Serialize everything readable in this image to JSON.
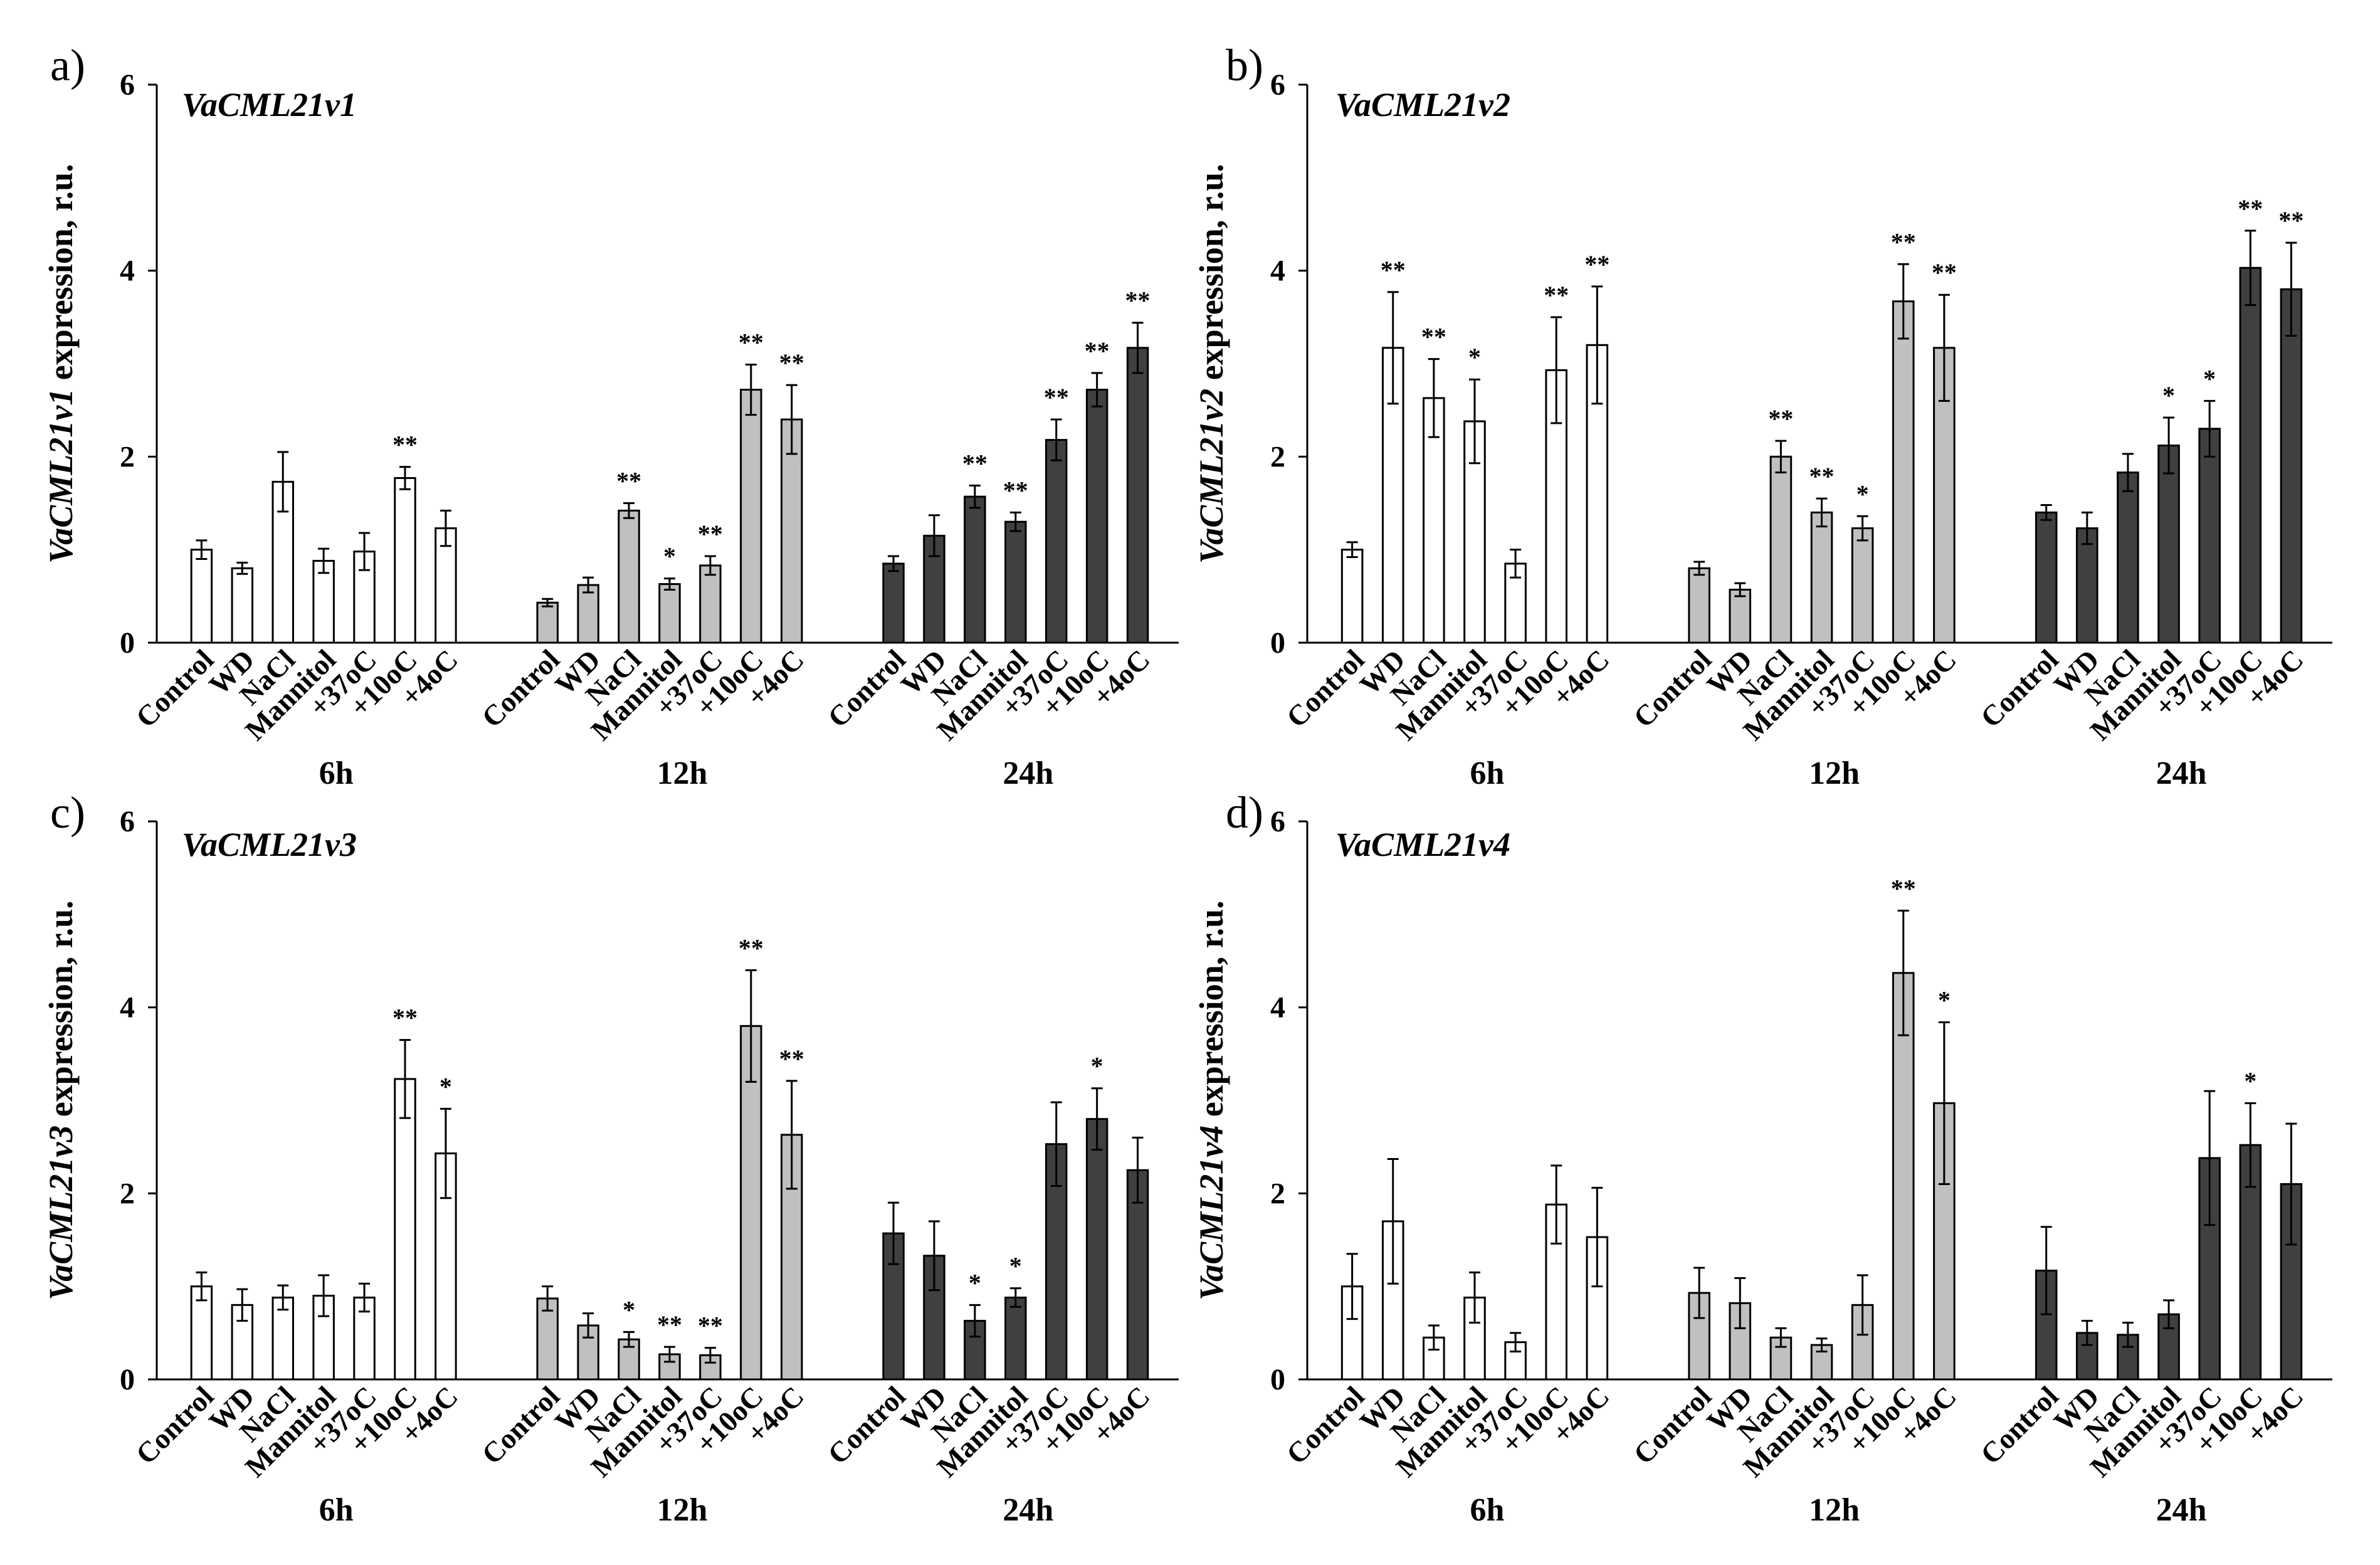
{
  "chart_data": [
    {
      "panel": "a)",
      "type": "bar",
      "title": "VaCML21v1",
      "ylabel_gene": "VaCML21v1",
      "ylabel_suffix": " expression, r.u.",
      "ylim": [
        0,
        6
      ],
      "yticks": [
        "0",
        "2",
        "4",
        "6"
      ],
      "groups": [
        {
          "name": "6h",
          "color": "#ffffff",
          "categories": [
            "Control",
            "WD",
            "NaCl",
            "Mannitol",
            "+37oC",
            "+10oC",
            "+4oC"
          ],
          "values": [
            1.0,
            0.8,
            1.73,
            0.88,
            0.98,
            1.77,
            1.23
          ],
          "errors": [
            0.1,
            0.06,
            0.32,
            0.13,
            0.2,
            0.12,
            0.19
          ],
          "stars": [
            "",
            "",
            "",
            "",
            "",
            "**",
            ""
          ]
        },
        {
          "name": "12h",
          "color": "#c0c0c0",
          "categories": [
            "Control",
            "WD",
            "NaCl",
            "Mannitol",
            "+37oC",
            "+10oC",
            "+4oC"
          ],
          "values": [
            0.43,
            0.62,
            1.42,
            0.63,
            0.83,
            2.72,
            2.4
          ],
          "errors": [
            0.04,
            0.08,
            0.08,
            0.06,
            0.1,
            0.27,
            0.37
          ],
          "stars": [
            "",
            "",
            "**",
            "*",
            "**",
            "**",
            "**"
          ]
        },
        {
          "name": "24h",
          "color": "#404040",
          "categories": [
            "Control",
            "WD",
            "NaCl",
            "Mannitol",
            "+37oC",
            "+10oC",
            "+4oC"
          ],
          "values": [
            0.85,
            1.15,
            1.57,
            1.3,
            2.18,
            2.72,
            3.17
          ],
          "errors": [
            0.08,
            0.22,
            0.12,
            0.1,
            0.22,
            0.18,
            0.27
          ],
          "stars": [
            "",
            "",
            "**",
            "**",
            "**",
            "**",
            "**"
          ]
        }
      ]
    },
    {
      "panel": "b)",
      "type": "bar",
      "title": "VaCML21v2",
      "ylabel_gene": "VaCML21v2",
      "ylabel_suffix": " expression, r.u.",
      "ylim": [
        0,
        6
      ],
      "yticks": [
        "0",
        "2",
        "4",
        "6"
      ],
      "groups": [
        {
          "name": "6h",
          "color": "#ffffff",
          "categories": [
            "Control",
            "WD",
            "NaCl",
            "Mannitol",
            "+37oC",
            "+10oC",
            "+4oC"
          ],
          "values": [
            1.0,
            3.17,
            2.63,
            2.38,
            0.85,
            2.93,
            3.2
          ],
          "errors": [
            0.08,
            0.6,
            0.42,
            0.45,
            0.15,
            0.57,
            0.63
          ],
          "stars": [
            "",
            "**",
            "**",
            "*",
            "",
            "**",
            "**"
          ]
        },
        {
          "name": "12h",
          "color": "#c0c0c0",
          "categories": [
            "Control",
            "WD",
            "NaCl",
            "Mannitol",
            "+37oC",
            "+10oC",
            "+4oC"
          ],
          "values": [
            0.8,
            0.57,
            2.0,
            1.4,
            1.23,
            3.67,
            3.17
          ],
          "errors": [
            0.07,
            0.07,
            0.17,
            0.15,
            0.13,
            0.4,
            0.57
          ],
          "stars": [
            "",
            "",
            "**",
            "**",
            "*",
            "**",
            "**"
          ]
        },
        {
          "name": "24h",
          "color": "#404040",
          "categories": [
            "Control",
            "WD",
            "NaCl",
            "Mannitol",
            "+37oC",
            "+10oC",
            "+4oC"
          ],
          "values": [
            1.4,
            1.23,
            1.83,
            2.12,
            2.3,
            4.03,
            3.8
          ],
          "errors": [
            0.08,
            0.17,
            0.2,
            0.3,
            0.3,
            0.4,
            0.5
          ],
          "stars": [
            "",
            "",
            "",
            "*",
            "*",
            "**",
            "**"
          ]
        }
      ]
    },
    {
      "panel": "c)",
      "type": "bar",
      "title": "VaCML21v3",
      "ylabel_gene": "VaCML21v3",
      "ylabel_suffix": " expression, r.u.",
      "ylim": [
        0,
        6
      ],
      "yticks": [
        "0",
        "2",
        "4",
        "6"
      ],
      "groups": [
        {
          "name": "6h",
          "color": "#ffffff",
          "categories": [
            "Control",
            "WD",
            "NaCl",
            "Mannitol",
            "+37oC",
            "+10oC",
            "+4oC"
          ],
          "values": [
            1.0,
            0.8,
            0.88,
            0.9,
            0.88,
            3.23,
            2.43
          ],
          "errors": [
            0.15,
            0.17,
            0.13,
            0.22,
            0.15,
            0.42,
            0.48
          ],
          "stars": [
            "",
            "",
            "",
            "",
            "",
            "**",
            "*"
          ]
        },
        {
          "name": "12h",
          "color": "#c0c0c0",
          "categories": [
            "Control",
            "WD",
            "NaCl",
            "Mannitol",
            "+37oC",
            "+10oC",
            "+4oC"
          ],
          "values": [
            0.87,
            0.58,
            0.43,
            0.27,
            0.26,
            3.8,
            2.63
          ],
          "errors": [
            0.13,
            0.13,
            0.08,
            0.08,
            0.08,
            0.6,
            0.58
          ],
          "stars": [
            "",
            "",
            "*",
            "**",
            "**",
            "**",
            "**"
          ]
        },
        {
          "name": "24h",
          "color": "#404040",
          "categories": [
            "Control",
            "WD",
            "NaCl",
            "Mannitol",
            "+37oC",
            "+10oC",
            "+4oC"
          ],
          "values": [
            1.57,
            1.33,
            0.63,
            0.88,
            2.53,
            2.8,
            2.25
          ],
          "errors": [
            0.33,
            0.37,
            0.17,
            0.1,
            0.45,
            0.33,
            0.35
          ],
          "stars": [
            "",
            "",
            "*",
            "*",
            "",
            "*",
            ""
          ]
        }
      ]
    },
    {
      "panel": "d)",
      "type": "bar",
      "title": "VaCML21v4",
      "ylabel_gene": "VaCML21v4",
      "ylabel_suffix": " expression, r.u.",
      "ylim": [
        0,
        6
      ],
      "yticks": [
        "0",
        "2",
        "4",
        "6"
      ],
      "groups": [
        {
          "name": "6h",
          "color": "#ffffff",
          "categories": [
            "Control",
            "WD",
            "NaCl",
            "Mannitol",
            "+37oC",
            "+10oC",
            "+4oC"
          ],
          "values": [
            1.0,
            1.7,
            0.45,
            0.88,
            0.4,
            1.88,
            1.53
          ],
          "errors": [
            0.35,
            0.67,
            0.13,
            0.27,
            0.1,
            0.42,
            0.53
          ],
          "stars": [
            "",
            "",
            "",
            "",
            "",
            "",
            ""
          ]
        },
        {
          "name": "12h",
          "color": "#c0c0c0",
          "categories": [
            "Control",
            "WD",
            "NaCl",
            "Mannitol",
            "+37oC",
            "+10oC",
            "+4oC"
          ],
          "values": [
            0.93,
            0.82,
            0.45,
            0.37,
            0.8,
            4.37,
            2.97
          ],
          "errors": [
            0.27,
            0.27,
            0.1,
            0.07,
            0.32,
            0.67,
            0.87
          ],
          "stars": [
            "",
            "",
            "",
            "",
            "",
            "**",
            "*"
          ]
        },
        {
          "name": "24h",
          "color": "#404040",
          "categories": [
            "Control",
            "WD",
            "NaCl",
            "Mannitol",
            "+37oC",
            "+10oC",
            "+4oC"
          ],
          "values": [
            1.17,
            0.5,
            0.48,
            0.7,
            2.38,
            2.52,
            2.1
          ],
          "errors": [
            0.47,
            0.13,
            0.13,
            0.15,
            0.72,
            0.45,
            0.65
          ],
          "stars": [
            "",
            "",
            "",
            "",
            "",
            "*",
            ""
          ]
        }
      ]
    }
  ]
}
